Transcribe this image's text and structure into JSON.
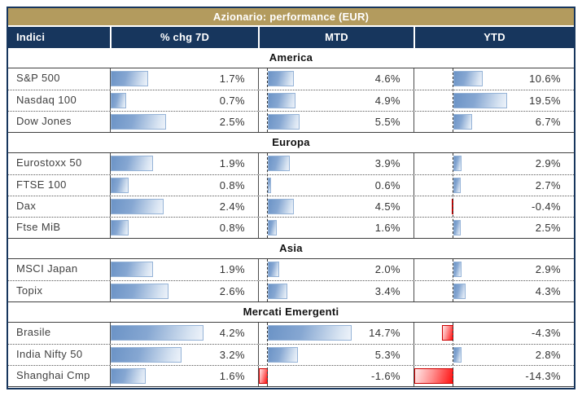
{
  "chart_data": {
    "type": "table",
    "title": "Azionario: performance (EUR)",
    "columns": [
      "Indici",
      "% chg 7D",
      "MTD",
      "YTD"
    ],
    "unit": "%",
    "value_format": "one_decimal_percent",
    "sections": [
      {
        "name": "America",
        "rows": [
          {
            "label": "S&P 500",
            "chg7d": 1.7,
            "mtd": 4.6,
            "ytd": 10.6
          },
          {
            "label": "Nasdaq 100",
            "chg7d": 0.7,
            "mtd": 4.9,
            "ytd": 19.5
          },
          {
            "label": "Dow Jones",
            "chg7d": 2.5,
            "mtd": 5.5,
            "ytd": 6.7
          }
        ]
      },
      {
        "name": "Europa",
        "rows": [
          {
            "label": "Eurostoxx 50",
            "chg7d": 1.9,
            "mtd": 3.9,
            "ytd": 2.9
          },
          {
            "label": "FTSE 100",
            "chg7d": 0.8,
            "mtd": 0.6,
            "ytd": 2.7
          },
          {
            "label": "Dax",
            "chg7d": 2.4,
            "mtd": 4.5,
            "ytd": -0.4
          },
          {
            "label": "Ftse MiB",
            "chg7d": 0.8,
            "mtd": 1.6,
            "ytd": 2.5
          }
        ]
      },
      {
        "name": "Asia",
        "rows": [
          {
            "label": "MSCI Japan",
            "chg7d": 1.9,
            "mtd": 2.0,
            "ytd": 2.9
          },
          {
            "label": "Topix",
            "chg7d": 2.6,
            "mtd": 3.4,
            "ytd": 4.3
          }
        ]
      },
      {
        "name": "Mercati Emergenti",
        "rows": [
          {
            "label": "Brasile",
            "chg7d": 4.2,
            "mtd": 14.7,
            "ytd": -4.3
          },
          {
            "label": "India Nifty 50",
            "chg7d": 3.2,
            "mtd": 5.3,
            "ytd": 2.8
          },
          {
            "label": "Shanghai Cmp",
            "chg7d": 1.6,
            "mtd": -1.6,
            "ytd": -14.3
          }
        ]
      }
    ],
    "legend_position": "none",
    "grid": "off"
  },
  "colors": {
    "title_bg": "#b39b5e",
    "header_bg": "#17365d",
    "header_text": "#ffffff",
    "positive_bar": "#638ec6",
    "negative_bar": "#ff0000",
    "body_text": "#3f3f3f"
  }
}
